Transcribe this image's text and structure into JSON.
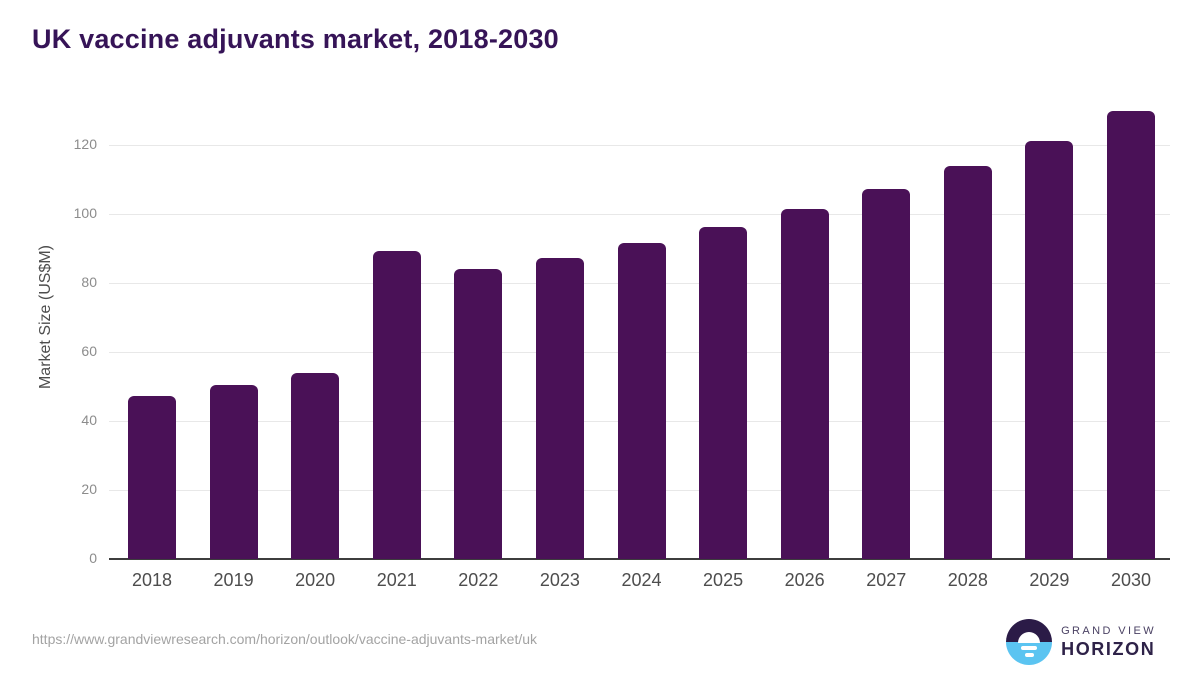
{
  "title": "UK vaccine adjuvants market, 2018-2030",
  "source_url": "https://www.grandviewresearch.com/horizon/outlook/vaccine-adjuvants-market/uk",
  "logo": {
    "line1": "GRAND VIEW",
    "line2": "HORIZON"
  },
  "colors": {
    "title": "#361457",
    "bar": "#4a1157",
    "gridline": "#e8e8e8",
    "axis_line": "#3d3d3d",
    "y_tick_label": "#8c8c8c",
    "x_tick_label": "#4d4d4d",
    "source_url": "#a3a3a3",
    "logo_purple": "#2b1b47",
    "logo_blue": "#5bc4f1"
  },
  "chart_data": {
    "type": "bar",
    "title": "UK vaccine adjuvants market, 2018-2030",
    "xlabel": "",
    "ylabel": "Market Size (US$M)",
    "categories": [
      "2018",
      "2019",
      "2020",
      "2021",
      "2022",
      "2023",
      "2024",
      "2025",
      "2026",
      "2027",
      "2028",
      "2029",
      "2030"
    ],
    "values": [
      47.2,
      50.4,
      53.9,
      89.2,
      84.1,
      87.2,
      91.8,
      96.3,
      101.5,
      107.4,
      114.0,
      121.1,
      130.0
    ],
    "ylim": [
      0,
      134
    ],
    "yticks": [
      0,
      20,
      40,
      60,
      80,
      100,
      120
    ],
    "grid": "horizontal",
    "legend": "none",
    "bar_color": "#4a1157"
  }
}
